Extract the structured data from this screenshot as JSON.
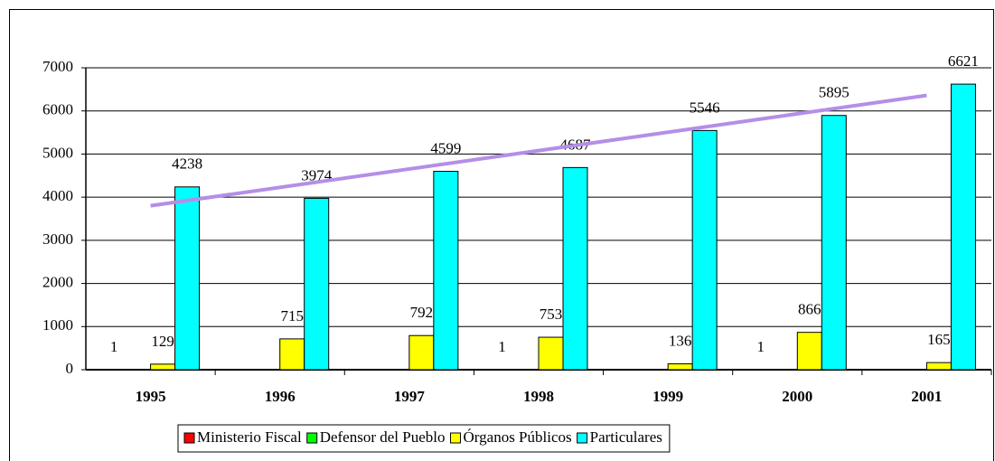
{
  "chart_data": {
    "type": "bar",
    "categories": [
      "1995",
      "1996",
      "1997",
      "1998",
      "1999",
      "2000",
      "2001"
    ],
    "series": [
      {
        "name": "Ministerio Fiscal",
        "color": "#ff0000",
        "values": [
          1,
          null,
          null,
          1,
          null,
          1,
          null
        ]
      },
      {
        "name": "Defensor del Pueblo",
        "color": "#00ff00",
        "values": [
          null,
          null,
          null,
          null,
          null,
          null,
          null
        ]
      },
      {
        "name": "Órganos Públicos",
        "color": "#ffff00",
        "values": [
          129,
          715,
          792,
          753,
          136,
          866,
          165
        ]
      },
      {
        "name": "Particulares",
        "color": "#00ffff",
        "values": [
          4238,
          3974,
          4599,
          4687,
          5546,
          5895,
          6621
        ]
      }
    ],
    "ylim": [
      0,
      7000
    ],
    "yticks": [
      0,
      1000,
      2000,
      3000,
      4000,
      5000,
      6000,
      7000
    ],
    "grid": true,
    "legend": "bottom",
    "trendline": "linear",
    "trendline_series": "Particulares",
    "trendline_color": "#b48ee8"
  }
}
